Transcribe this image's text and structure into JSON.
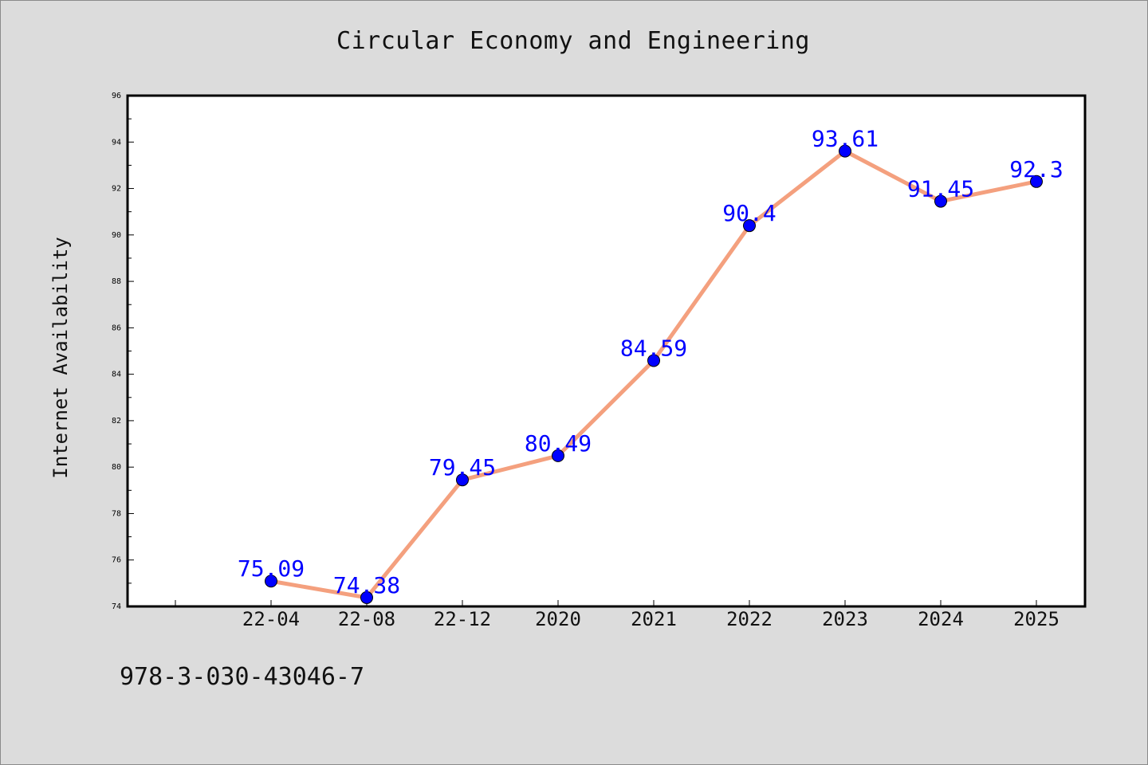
{
  "chart_data": {
    "type": "line",
    "title": "Circular Economy and Engineering",
    "xlabel": "",
    "ylabel": "Internet Availability",
    "categories": [
      "22-04",
      "22-08",
      "22-12",
      "2020",
      "2021",
      "2022",
      "2023",
      "2024",
      "2025"
    ],
    "series": [
      {
        "values": [
          75.09,
          74.38,
          79.45,
          80.49,
          84.59,
          90.4,
          93.61,
          91.45,
          92.3
        ],
        "data_labels": [
          "75.09",
          "74.38",
          "79.45",
          "80.49",
          "84.59",
          "90.4",
          "93.61",
          "91.45",
          "92.3"
        ]
      }
    ],
    "ylim": [
      74,
      96
    ],
    "yticks": [
      "74",
      "76",
      "78",
      "80",
      "82",
      "84",
      "86",
      "88",
      "90",
      "92",
      "94",
      "96"
    ],
    "grid": false,
    "legend": "none",
    "colors": {
      "line": "#f4a07e",
      "marker": "#0000ff",
      "data_label": "#0000ff",
      "plot_bg": "#ffffff",
      "page_bg": "#dcdcdc"
    }
  },
  "footer": {
    "isbn": "978-3-030-43046-7"
  }
}
